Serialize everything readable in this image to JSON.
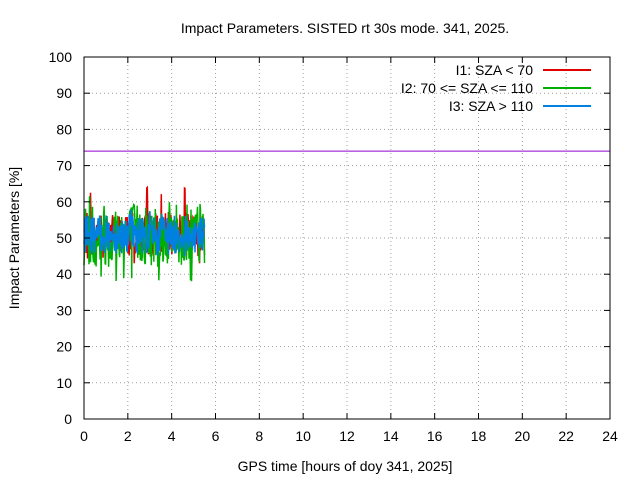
{
  "chart_data": {
    "type": "line",
    "title": "Impact Parameters. SISTED rt 30s mode. 341, 2025.",
    "xlabel": "GPS time [hours of doy 341, 2025]",
    "ylabel": "Impact Parameters [%]",
    "xlim": [
      0,
      24
    ],
    "ylim": [
      0,
      100
    ],
    "xticks": [
      0,
      2,
      4,
      6,
      8,
      10,
      12,
      14,
      16,
      18,
      20,
      22,
      24
    ],
    "yticks": [
      0,
      10,
      20,
      30,
      40,
      50,
      60,
      70,
      80,
      90,
      100
    ],
    "grid": true,
    "legend_position": "top-right",
    "reference_line": {
      "y": 74,
      "color": "#9400d3"
    },
    "series": [
      {
        "name": "I1: SZA < 70",
        "color": "#e00000",
        "x_range": [
          0,
          5.5
        ],
        "mean": 51,
        "min": 43,
        "max": 64
      },
      {
        "name": "I2: 70 <= SZA <= 110",
        "color": "#00b000",
        "x_range": [
          0,
          5.5
        ],
        "mean": 51,
        "min": 38,
        "max": 63
      },
      {
        "name": "I3: SZA > 110",
        "color": "#0080e0",
        "x_range": [
          0,
          5.5
        ],
        "mean": 51,
        "min": 44,
        "max": 58
      }
    ]
  }
}
